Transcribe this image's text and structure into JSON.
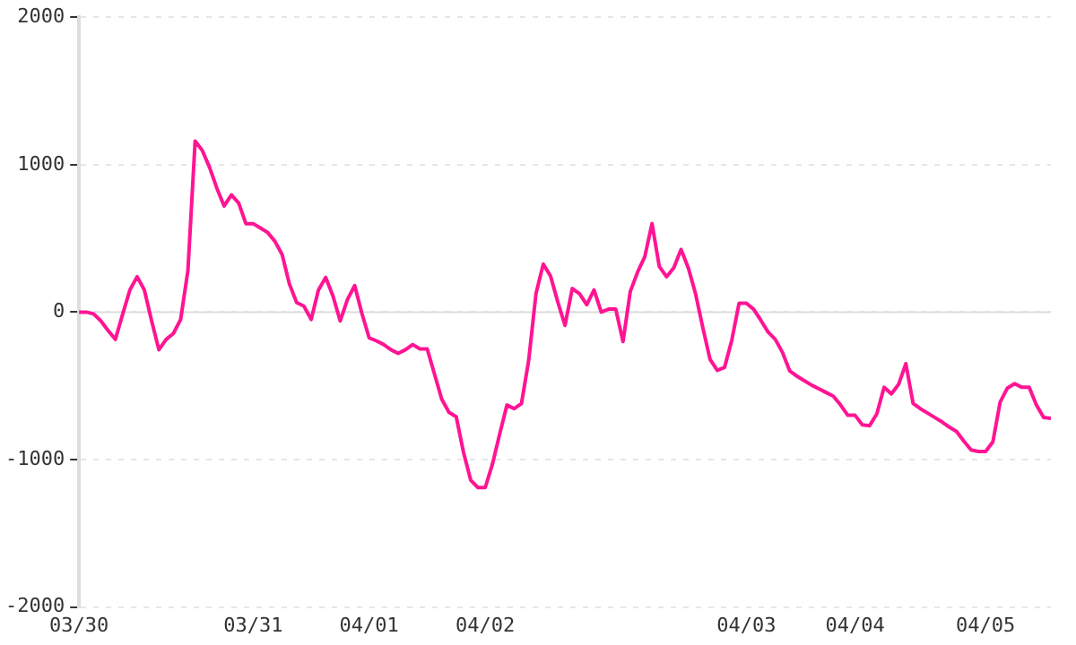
{
  "chart_data": {
    "type": "line",
    "categories": [
      "03/30",
      null,
      null,
      null,
      null,
      null,
      null,
      null,
      null,
      null,
      null,
      null,
      null,
      null,
      null,
      null,
      null,
      null,
      null,
      null,
      null,
      null,
      null,
      null,
      "03/31",
      null,
      null,
      null,
      null,
      null,
      null,
      null,
      null,
      null,
      null,
      null,
      null,
      null,
      null,
      null,
      "04/01",
      null,
      null,
      null,
      null,
      null,
      null,
      null,
      null,
      null,
      null,
      null,
      null,
      null,
      null,
      null,
      "04/02",
      null,
      null,
      null,
      null,
      null,
      null,
      null,
      null,
      null,
      null,
      null,
      null,
      null,
      null,
      null,
      null,
      null,
      null,
      null,
      null,
      null,
      null,
      null,
      null,
      null,
      null,
      null,
      null,
      null,
      null,
      null,
      null,
      null,
      null,
      null,
      "04/03",
      null,
      null,
      null,
      null,
      null,
      null,
      null,
      null,
      null,
      null,
      null,
      null,
      null,
      null,
      "04/04",
      null,
      null,
      null,
      null,
      null,
      null,
      null,
      null,
      null,
      null,
      null,
      null,
      null,
      null,
      null,
      null,
      null,
      "04/05",
      null,
      null,
      null,
      null,
      null,
      null,
      null,
      null,
      null
    ],
    "series": [
      {
        "color": "#ff1493",
        "values": [
          0,
          0,
          -12,
          -60,
          -125,
          -185,
          -15,
          150,
          240,
          150,
          -60,
          -255,
          -185,
          -145,
          -50,
          280,
          1160,
          1095,
          980,
          840,
          720,
          795,
          740,
          600,
          600,
          570,
          540,
          480,
          390,
          190,
          65,
          40,
          -50,
          150,
          235,
          110,
          -60,
          85,
          180,
          -10,
          -175,
          -195,
          -220,
          -255,
          -280,
          -255,
          -220,
          -250,
          -250,
          -420,
          -590,
          -680,
          -710,
          -950,
          -1140,
          -1190,
          -1190,
          -1030,
          -825,
          -630,
          -655,
          -620,
          -325,
          125,
          325,
          245,
          70,
          -90,
          160,
          125,
          50,
          150,
          0,
          20,
          20,
          -200,
          140,
          270,
          375,
          600,
          310,
          240,
          300,
          425,
          300,
          125,
          -105,
          -320,
          -395,
          -375,
          -190,
          60,
          60,
          20,
          -55,
          -135,
          -185,
          -275,
          -400,
          -435,
          -465,
          -495,
          -520,
          -545,
          -570,
          -630,
          -700,
          -700,
          -765,
          -770,
          -690,
          -510,
          -555,
          -490,
          -350,
          -620,
          -655,
          -685,
          -715,
          -745,
          -780,
          -810,
          -875,
          -935,
          -945,
          -945,
          -880,
          -610,
          -515,
          -485,
          -510,
          -510,
          -630,
          -715,
          -720
        ]
      }
    ],
    "ylim": [
      -2000,
      2000
    ],
    "yticks": [
      -2000,
      -1000,
      0,
      1000,
      2000
    ],
    "grid": "y",
    "legend": false,
    "marker": "none",
    "line_style": "solid",
    "ref_lines": [
      {
        "axis": "y",
        "value": 0,
        "color": "#dddddd"
      }
    ]
  }
}
